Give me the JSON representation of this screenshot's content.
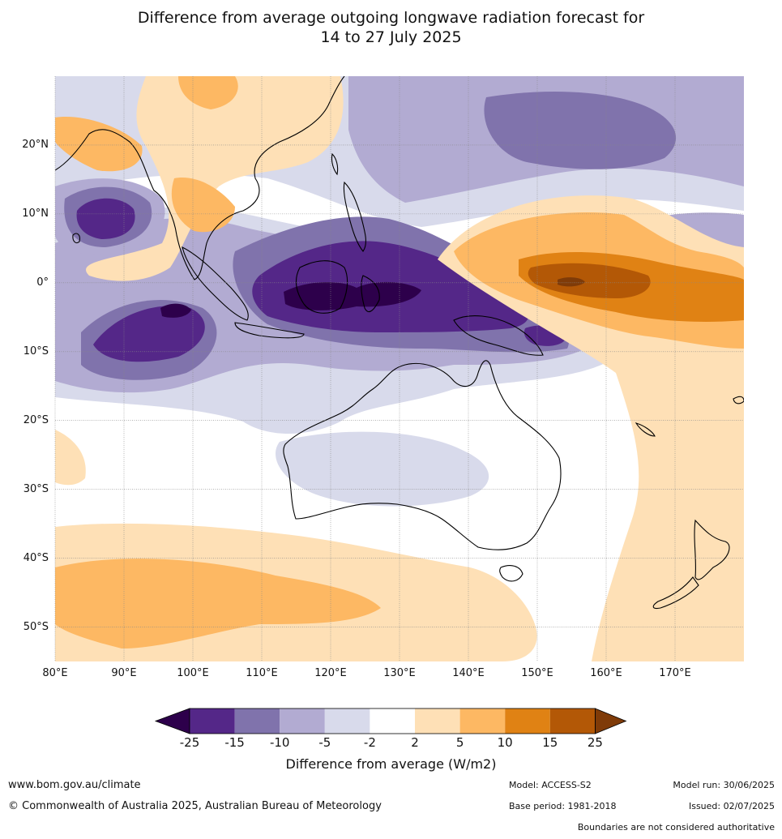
{
  "title": {
    "line1": "Difference from average outgoing longwave radiation forecast for",
    "line2": "14 to 27 July 2025"
  },
  "map": {
    "lat_labels": [
      "20°N",
      "10°N",
      "0°",
      "10°S",
      "20°S",
      "30°S",
      "40°S",
      "50°S"
    ],
    "lon_labels": [
      "80°E",
      "90°E",
      "100°E",
      "110°E",
      "120°E",
      "130°E",
      "140°E",
      "150°E",
      "160°E",
      "170°E"
    ],
    "lon_range": [
      80,
      180
    ],
    "lat_range": [
      -55,
      30
    ]
  },
  "colorbar": {
    "ticks": [
      "-25",
      "-15",
      "-10",
      "-5",
      "-2",
      "2",
      "5",
      "10",
      "15",
      "25"
    ],
    "label": "Difference from average (W/m2)",
    "colors": {
      "below_min": "#2d004b",
      "c1": "#542788",
      "c2": "#8073ac",
      "c3": "#b2abd2",
      "c4": "#d8daeb",
      "neutral": "#ffffff",
      "c6": "#fee0b6",
      "c7": "#fdb863",
      "c8": "#e08214",
      "c9": "#b35806",
      "above_max": "#7f3b08"
    }
  },
  "footer": {
    "url": "www.bom.gov.au/climate",
    "copyright": "© Commonwealth of Australia 2025, Australian Bureau of Meteorology",
    "model": "Model: ACCESS-S2",
    "base_period": "Base period: 1981-2018",
    "model_run": "Model run: 30/06/2025",
    "issued": "Issued: 02/07/2025",
    "disclaimer": "Boundaries are not considered authoritative"
  }
}
